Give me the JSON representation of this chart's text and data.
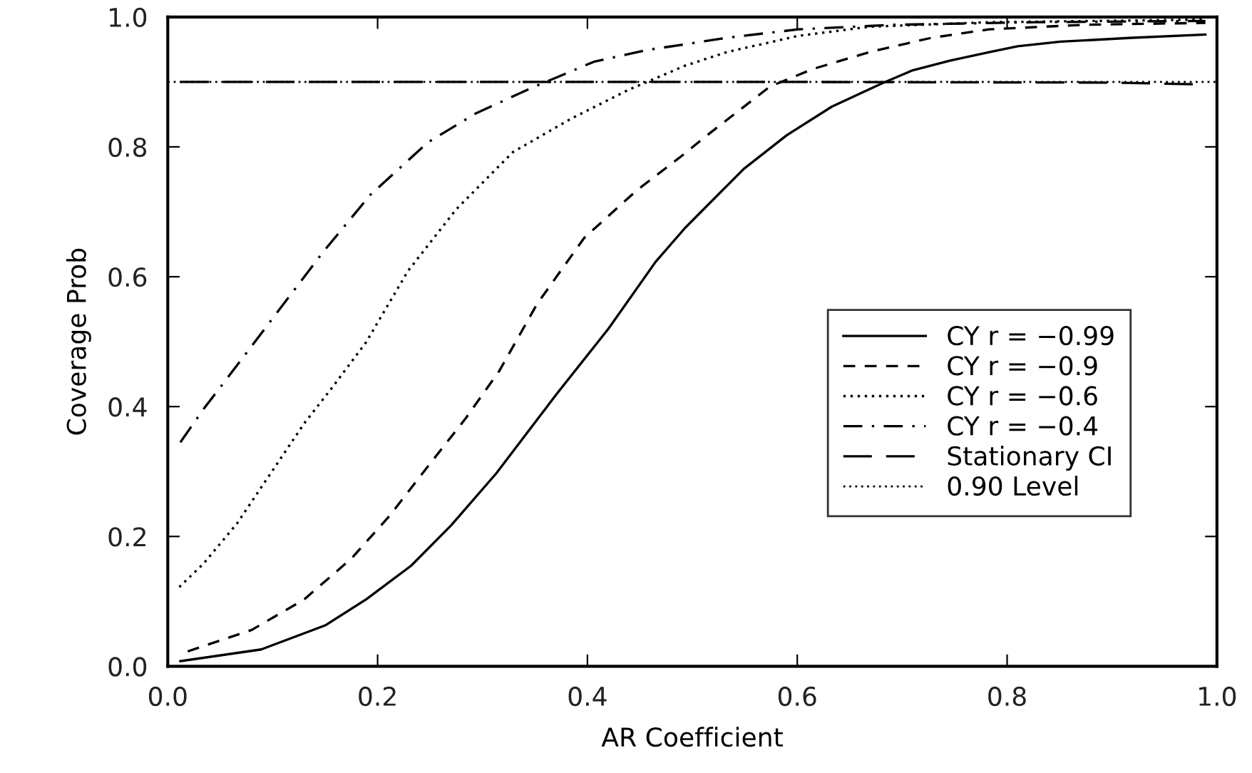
{
  "chart_data": {
    "type": "line",
    "xlabel": "AR Coefficient",
    "ylabel": "Coverage Prob",
    "xlim": [
      0,
      1.0
    ],
    "ylim": [
      0,
      1.0
    ],
    "xticks": [
      {
        "value": 0,
        "label": "0.0"
      },
      0.2,
      0.4,
      0.6,
      0.8,
      {
        "value": 1.0,
        "label": "1.0"
      }
    ],
    "yticks": [
      {
        "value": 0,
        "label": "0.0"
      },
      0.2,
      0.4,
      0.6,
      0.8,
      {
        "value": 1.0,
        "label": "1.0"
      }
    ],
    "grid": false,
    "legend": "right",
    "marker": "none",
    "series": [
      {
        "name": "CY r = −0.99",
        "color": "#000000",
        "line_style": "solid",
        "x": [
          0.012,
          0.089,
          0.15,
          0.189,
          0.232,
          0.27,
          0.313,
          0.37,
          0.42,
          0.465,
          0.493,
          0.549,
          0.59,
          0.633,
          0.681,
          0.71,
          0.746,
          0.783,
          0.81,
          0.851,
          0.919,
          0.989
        ],
        "values": [
          0.008,
          0.026,
          0.063,
          0.103,
          0.155,
          0.217,
          0.297,
          0.418,
          0.52,
          0.623,
          0.675,
          0.766,
          0.818,
          0.862,
          0.898,
          0.918,
          0.933,
          0.946,
          0.955,
          0.962,
          0.968,
          0.973
        ]
      },
      {
        "name": "CY r = −0.9",
        "color": "#000000",
        "line_style": "dashed",
        "x": [
          0.019,
          0.08,
          0.13,
          0.175,
          0.211,
          0.248,
          0.284,
          0.316,
          0.352,
          0.397,
          0.447,
          0.493,
          0.511,
          0.574,
          0.615,
          0.669,
          0.728,
          0.783,
          0.873,
          0.989
        ],
        "values": [
          0.023,
          0.056,
          0.103,
          0.166,
          0.231,
          0.308,
          0.382,
          0.455,
          0.558,
          0.66,
          0.733,
          0.79,
          0.814,
          0.893,
          0.92,
          0.946,
          0.968,
          0.981,
          0.988,
          0.991
        ]
      },
      {
        "name": "CY r = −0.6",
        "color": "#000000",
        "line_style": "dotted",
        "x": [
          0.011,
          0.034,
          0.066,
          0.098,
          0.13,
          0.157,
          0.189,
          0.229,
          0.275,
          0.329,
          0.384,
          0.438,
          0.493,
          0.533,
          0.601,
          0.669,
          0.783,
          0.989
        ],
        "values": [
          0.122,
          0.158,
          0.22,
          0.297,
          0.374,
          0.43,
          0.499,
          0.609,
          0.704,
          0.792,
          0.843,
          0.887,
          0.925,
          0.946,
          0.971,
          0.985,
          0.992,
          0.996
        ]
      },
      {
        "name": "CY r = −0.4",
        "color": "#000000",
        "line_style": "dashdot",
        "x": [
          0.012,
          0.034,
          0.062,
          0.093,
          0.148,
          0.193,
          0.248,
          0.293,
          0.347,
          0.406,
          0.456,
          0.493,
          0.533,
          0.601,
          0.692,
          0.828,
          0.989
        ],
        "values": [
          0.345,
          0.396,
          0.455,
          0.521,
          0.638,
          0.726,
          0.807,
          0.851,
          0.891,
          0.931,
          0.949,
          0.958,
          0.968,
          0.981,
          0.988,
          0.992,
          0.994
        ]
      },
      {
        "name": "Stationary CI",
        "color": "#000000",
        "line_style": "longdash",
        "x": [
          0.012,
          0.3,
          0.6,
          0.9,
          0.989
        ],
        "values": [
          0.9,
          0.9,
          0.9,
          0.899,
          0.896
        ]
      }
    ],
    "ref_lines": [
      {
        "axis": "y",
        "value": 0.9,
        "label": "0.90 Level",
        "line_style": "dotted",
        "color": "#000000"
      }
    ]
  }
}
